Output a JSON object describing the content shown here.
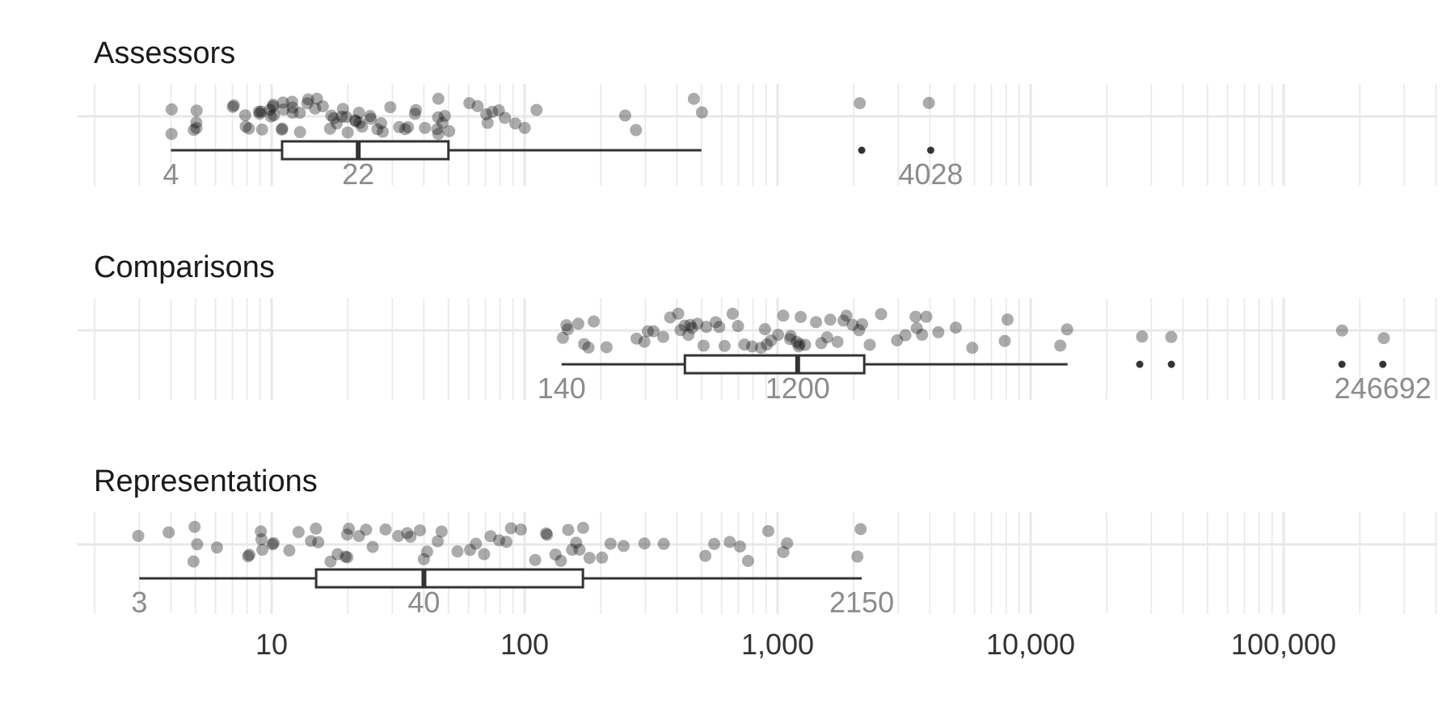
{
  "chart_data": {
    "type": "scatter",
    "subtype": "jittered strip plot with horizontal boxplot, faceted",
    "x_scale": "log10",
    "xlim": [
      2,
      450000
    ],
    "grid": true,
    "x_ticks": [
      {
        "value": 10,
        "label": "10"
      },
      {
        "value": 100,
        "label": "100"
      },
      {
        "value": 1000,
        "label": "1,000"
      },
      {
        "value": 10000,
        "label": "10,000"
      },
      {
        "value": 100000,
        "label": "100,000"
      }
    ],
    "colors": {
      "points": "#000000",
      "box": "#333333",
      "annotation": "#8c8c8c",
      "grid": "#e8e8e8"
    },
    "panels": [
      {
        "title": "Assessors",
        "labels": [
          {
            "value": 4,
            "text": "4"
          },
          {
            "value": 22,
            "text": "22"
          },
          {
            "value": 4028,
            "text": "4028"
          }
        ],
        "box": {
          "whisker_low": 4,
          "q1": 11,
          "median": 22,
          "q3": 50,
          "whisker_high": 500
        },
        "outliers": [
          2150,
          4028
        ],
        "points": [
          4,
          4,
          5,
          5,
          5,
          5,
          7,
          7,
          8,
          8,
          8,
          9,
          9,
          9,
          9,
          10,
          10,
          10,
          10,
          10,
          11,
          11,
          11,
          11,
          12,
          12,
          12,
          13,
          13,
          14,
          14,
          15,
          15,
          16,
          17,
          17,
          18,
          18,
          19,
          19,
          20,
          20,
          21,
          22,
          22,
          22,
          23,
          24,
          25,
          26,
          27,
          28,
          30,
          32,
          34,
          35,
          37,
          38,
          40,
          45,
          45,
          46,
          46,
          47,
          48,
          50,
          60,
          65,
          70,
          72,
          75,
          80,
          85,
          90,
          100,
          110,
          250,
          280,
          470,
          500,
          2150,
          4028
        ]
      },
      {
        "title": "Comparisons",
        "labels": [
          {
            "value": 140,
            "text": "140"
          },
          {
            "value": 1200,
            "text": "1200"
          },
          {
            "value": 246692,
            "text": "246692"
          }
        ],
        "box": {
          "whisker_low": 140,
          "q1": 430,
          "median": 1200,
          "q3": 2200,
          "whisker_high": 14000
        },
        "outliers": [
          27000,
          36000,
          170000,
          246692
        ],
        "points": [
          140,
          145,
          150,
          160,
          175,
          180,
          190,
          210,
          280,
          300,
          310,
          320,
          350,
          380,
          400,
          420,
          430,
          440,
          450,
          460,
          480,
          500,
          520,
          560,
          600,
          620,
          650,
          700,
          750,
          800,
          850,
          880,
          900,
          950,
          1000,
          1050,
          1100,
          1150,
          1200,
          1200,
          1220,
          1250,
          1300,
          1400,
          1500,
          1550,
          1600,
          1700,
          1800,
          1900,
          2000,
          2100,
          2200,
          2300,
          2600,
          3000,
          3200,
          3500,
          3500,
          3700,
          3900,
          4300,
          5000,
          6000,
          7800,
          8200,
          13000,
          14000,
          27000,
          36000,
          170000,
          246692
        ]
      },
      {
        "title": "Representations",
        "labels": [
          {
            "value": 3,
            "text": "3"
          },
          {
            "value": 40,
            "text": "40"
          },
          {
            "value": 2150,
            "text": "2150"
          }
        ],
        "box": {
          "whisker_low": 3,
          "q1": 15,
          "median": 40,
          "q3": 170,
          "whisker_high": 2150
        },
        "points": [
          3,
          4,
          5,
          5,
          5,
          6,
          8,
          8,
          9,
          9,
          9,
          10,
          10,
          12,
          13,
          14,
          15,
          15,
          17,
          18,
          20,
          20,
          20,
          20,
          22,
          24,
          25,
          28,
          32,
          35,
          36,
          38,
          40,
          42,
          45,
          48,
          55,
          60,
          65,
          70,
          75,
          80,
          85,
          90,
          95,
          110,
          120,
          125,
          130,
          140,
          150,
          155,
          160,
          165,
          170,
          180,
          200,
          220,
          250,
          300,
          350,
          520,
          550,
          650,
          700,
          750,
          900,
          1050,
          1100,
          2100,
          2150
        ]
      }
    ]
  }
}
